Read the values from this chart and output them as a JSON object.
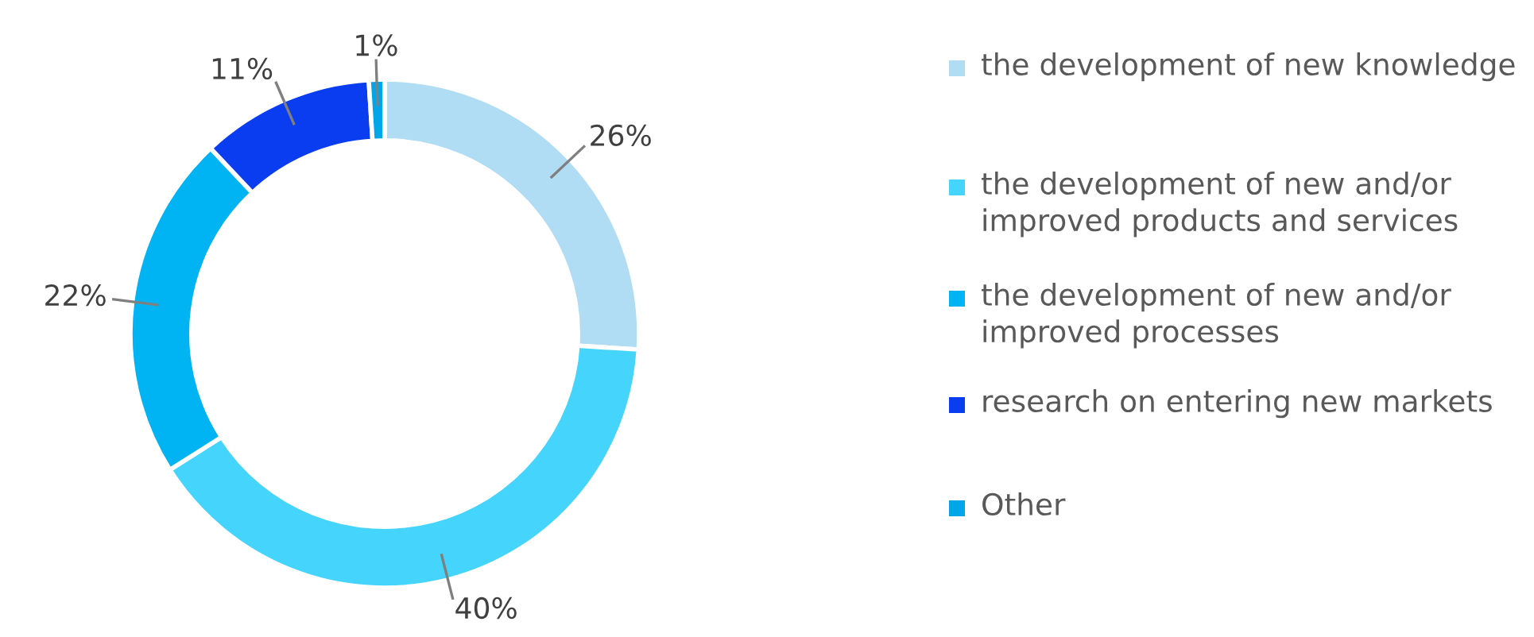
{
  "chart_data": {
    "type": "donut",
    "categories": [
      "the development of new knowledge",
      "the development of new and/or improved products and services",
      "the development of new and/or improved processes",
      "research on entering new markets",
      "Other"
    ],
    "values": [
      26,
      40,
      22,
      11,
      1
    ],
    "colors": [
      "#b0dcf4",
      "#44d4fc",
      "#00b4f4",
      "#0a3cf0",
      "#00a6e8"
    ],
    "value_labels": [
      "26%",
      "40%",
      "22%",
      "11%",
      "1%"
    ],
    "legend": "right"
  }
}
